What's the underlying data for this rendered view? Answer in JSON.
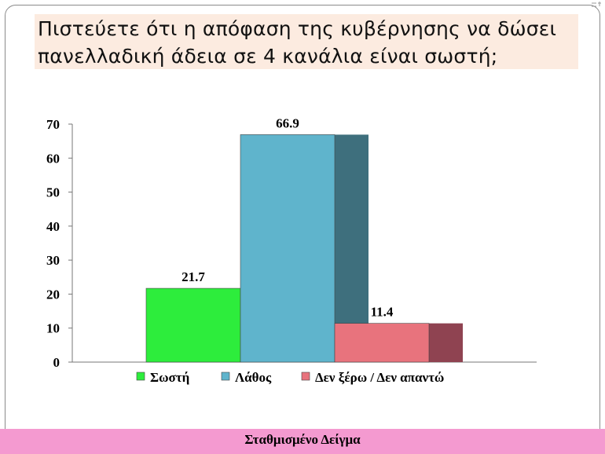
{
  "slide": {
    "title": "Πιστεύετε ότι η απόφαση της κυβέρνησης να δώσει πανελλαδική άδεια σε 4 κανάλια είναι σωστή;",
    "footer": "Σταθμισμένο Δείγμα"
  },
  "chart_data": {
    "type": "bar",
    "categories": [
      "Σωστή",
      "Λάθος",
      "Δεν ξέρω / Δεν απαντώ"
    ],
    "values": [
      21.7,
      66.9,
      11.4
    ],
    "data_labels": [
      "21.7",
      "66.9",
      "11.4"
    ],
    "legend": [
      "Σωστή",
      "Λάθος",
      "Δεν ξέρω / Δεν απαντώ"
    ],
    "yticks": [
      "0",
      "10",
      "20",
      "30",
      "40",
      "50",
      "60",
      "70"
    ],
    "ylim": [
      0,
      70
    ],
    "legend_position": "bottom",
    "colors": [
      "#2ded3c",
      "#5fb4cc",
      "#e8737d"
    ],
    "side_colors": [
      null,
      "#3e6f7d",
      "#8f4351"
    ],
    "grid": false,
    "style": "3d"
  }
}
